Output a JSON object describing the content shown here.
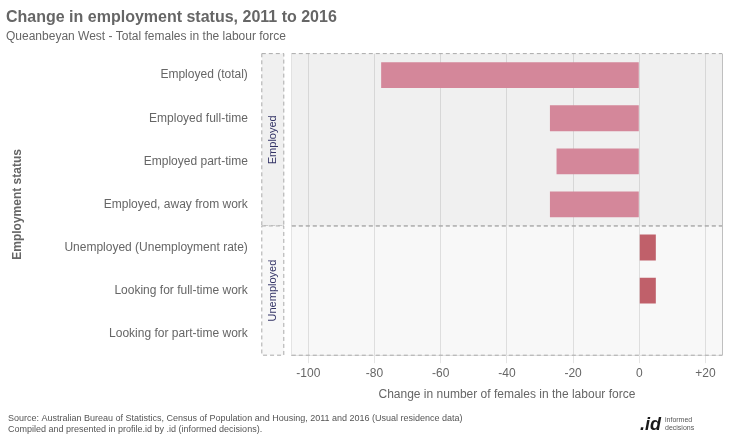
{
  "chart_data": {
    "type": "bar",
    "orientation": "horizontal",
    "title": "Change in employment status, 2011 to 2016",
    "subtitle": "Queanbeyan West - Total females in the labour force",
    "xlabel": "Change in number of females in the labour force",
    "ylabel": "Employment status",
    "categories": [
      "Looking for part-time work",
      "Looking for full-time work",
      "Unemployed (Unemployment rate)",
      "Employed, away from work",
      "Employed part-time",
      "Employed full-time",
      "Employed (total)"
    ],
    "values": [
      0,
      5,
      5,
      -27,
      -25,
      -27,
      -78
    ],
    "colors": [
      "#c0606a",
      "#c0606a",
      "#c0606a",
      "#d4879a",
      "#d4879a",
      "#d4879a",
      "#d4879a"
    ],
    "xlim": [
      -105,
      25
    ],
    "xticks": [
      -100,
      -80,
      -60,
      -40,
      -20,
      0,
      {
        "value": 20,
        "label": "+20"
      }
    ],
    "grid": true,
    "annotations": [
      {
        "text": "Employed",
        "categories": [
          "Employed, away from work",
          "Employed part-time",
          "Employed full-time",
          "Employed (total)"
        ]
      },
      {
        "text": "Unemployed",
        "categories": [
          "Looking for part-time work",
          "Looking for full-time work",
          "Unemployed (Unemployment rate)"
        ]
      },
      {
        "text": ".id"
      },
      {
        "text": "informed\ndecisions"
      }
    ],
    "source": "Source: Australian Bureau of Statistics, Census of Population and Housing, 2011 and 2016 (Usual residence data)\nCompiled and presented in profile.id by .id (informed decisions)."
  }
}
